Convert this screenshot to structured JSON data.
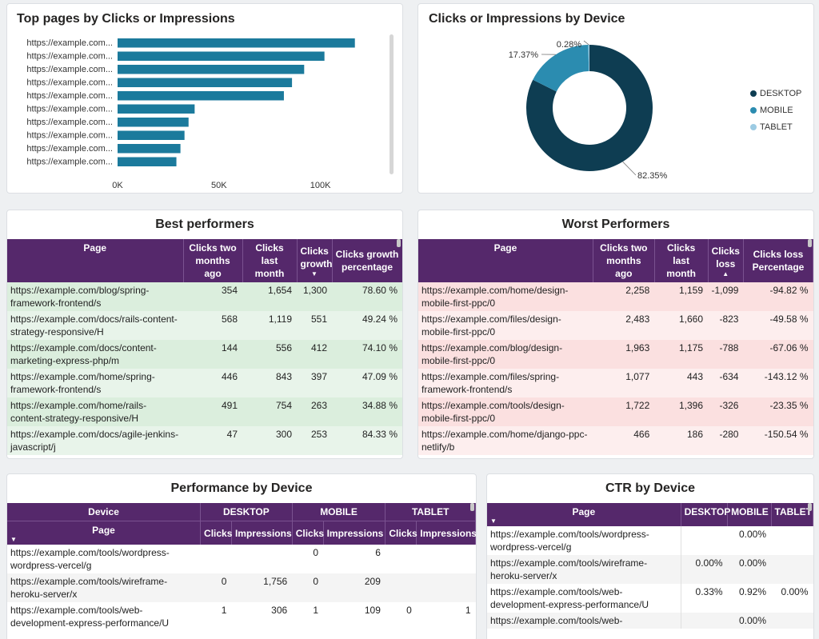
{
  "top_pages": {
    "title": "Top pages by Clicks or Impressions",
    "chart_data": {
      "type": "bar",
      "orientation": "horizontal",
      "title": "Top pages by Clicks or Impressions",
      "categories": [
        "https://example.com...",
        "https://example.com...",
        "https://example.com...",
        "https://example.com...",
        "https://example.com...",
        "https://example.com...",
        "https://example.com...",
        "https://example.com...",
        "https://example.com...",
        "https://example.com..."
      ],
      "values": [
        117000,
        102000,
        92000,
        86000,
        82000,
        38000,
        35000,
        33000,
        31000,
        29000
      ],
      "xlim": [
        0,
        125000
      ],
      "xticks": [
        "0K",
        "50K",
        "100K"
      ],
      "color": "#1b7a9c"
    }
  },
  "device_donut": {
    "title": "Clicks or Impressions by Device",
    "chart_data": {
      "type": "pie",
      "donut": true,
      "title": "Clicks or Impressions by Device",
      "labels": [
        "DESKTOP",
        "MOBILE",
        "TABLET"
      ],
      "values": [
        82.35,
        17.37,
        0.28
      ],
      "value_labels": [
        "82.35%",
        "17.37%",
        "0.28%"
      ],
      "colors": [
        "#0e3d52",
        "#2b8cb0",
        "#9ccbe3"
      ]
    }
  },
  "best": {
    "title": "Best performers",
    "headers": [
      "Page",
      "Clicks two months ago",
      "Clicks last month",
      "Clicks growth",
      "Clicks growth percentage"
    ],
    "rows": [
      [
        "https://example.com/blog/spring-framework-frontend/s",
        "354",
        "1,654",
        "1,300",
        "78.60 %"
      ],
      [
        "https://example.com/docs/rails-content-strategy-responsive/H",
        "568",
        "1,119",
        "551",
        "49.24 %"
      ],
      [
        "https://example.com/docs/content-marketing-express-php/m",
        "144",
        "556",
        "412",
        "74.10 %"
      ],
      [
        "https://example.com/home/spring-framework-frontend/s",
        "446",
        "843",
        "397",
        "47.09 %"
      ],
      [
        "https://example.com/home/rails-content-strategy-responsive/H",
        "491",
        "754",
        "263",
        "34.88 %"
      ],
      [
        "https://example.com/docs/agile-jenkins-javascript/j",
        "47",
        "300",
        "253",
        "84.33 %"
      ]
    ]
  },
  "worst": {
    "title": "Worst Performers",
    "headers": [
      "Page",
      "Clicks two months ago",
      "Clicks last month",
      "Clicks loss",
      "Clicks loss Percentage"
    ],
    "rows": [
      [
        "https://example.com/home/design-mobile-first-ppc/0",
        "2,258",
        "1,159",
        "-1,099",
        "-94.82 %"
      ],
      [
        "https://example.com/files/design-mobile-first-ppc/0",
        "2,483",
        "1,660",
        "-823",
        "-49.58 %"
      ],
      [
        "https://example.com/blog/design-mobile-first-ppc/0",
        "1,963",
        "1,175",
        "-788",
        "-67.06 %"
      ],
      [
        "https://example.com/files/spring-framework-frontend/s",
        "1,077",
        "443",
        "-634",
        "-143.12 %"
      ],
      [
        "https://example.com/tools/design-mobile-first-ppc/0",
        "1,722",
        "1,396",
        "-326",
        "-23.35 %"
      ],
      [
        "https://example.com/home/django-ppc-netlify/b",
        "466",
        "186",
        "-280",
        "-150.54 %"
      ]
    ]
  },
  "perf": {
    "title": "Performance by Device",
    "device_header": "Device",
    "page_header": "Page",
    "devices": [
      "DESKTOP",
      "MOBILE",
      "TABLET"
    ],
    "metric_headers": [
      "Clicks",
      "Impressions",
      "Clicks",
      "Impressions",
      "Clicks",
      "Impressions"
    ],
    "rows": [
      [
        "https://example.com/tools/wordpress-wordpress-vercel/g",
        "",
        "",
        "0",
        "6",
        "",
        ""
      ],
      [
        "https://example.com/tools/wireframe-heroku-server/x",
        "0",
        "1,756",
        "0",
        "209",
        "",
        ""
      ],
      [
        "https://example.com/tools/web-development-express-performance/U",
        "1",
        "306",
        "1",
        "109",
        "0",
        "1"
      ]
    ]
  },
  "ctr": {
    "title": "CTR by Device",
    "headers": [
      "Page",
      "DESKTOP",
      "MOBILE",
      "TABLET"
    ],
    "rows": [
      [
        "https://example.com/tools/wordpress-wordpress-vercel/g",
        "",
        "0.00%",
        ""
      ],
      [
        "https://example.com/tools/wireframe-heroku-server/x",
        "0.00%",
        "0.00%",
        ""
      ],
      [
        "https://example.com/tools/web-development-express-performance/U",
        "0.33%",
        "0.92%",
        "0.00%"
      ],
      [
        "https://example.com/tools/web-",
        "",
        "0.00%",
        ""
      ]
    ]
  }
}
